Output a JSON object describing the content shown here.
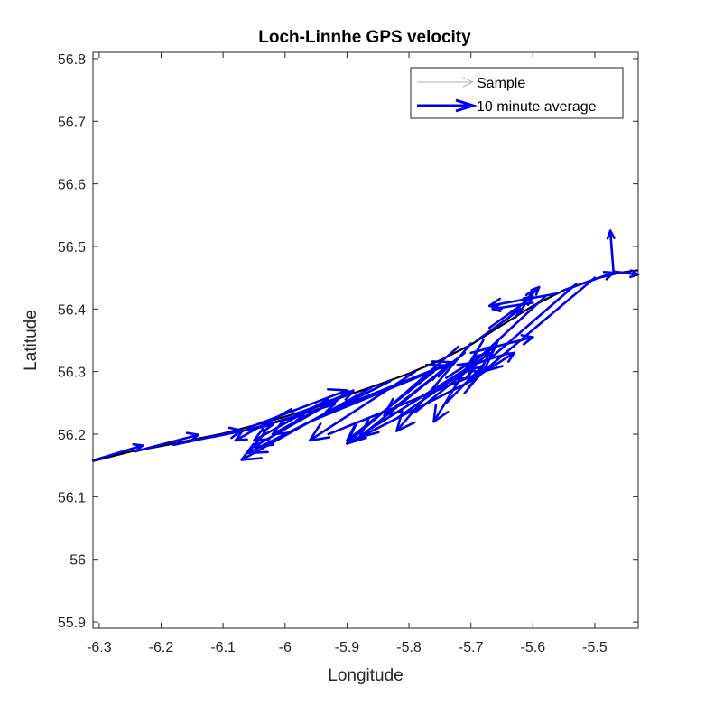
{
  "colors": {
    "avg": "#0000ee",
    "sample": "#000000",
    "sample_legend": "#b3b3b3",
    "axis": "#262626"
  },
  "chart_data": {
    "type": "quiver",
    "title": "Loch-Linnhe GPS velocity",
    "xlabel": "Longitude",
    "ylabel": "Latitude",
    "xlim": [
      -6.31,
      -5.43
    ],
    "ylim": [
      55.89,
      56.81
    ],
    "xticks": [
      -6.3,
      -6.2,
      -6.1,
      -6.0,
      -5.9,
      -5.8,
      -5.7,
      -5.6,
      -5.5
    ],
    "xtick_labels": [
      "-6.3",
      "-6.2",
      "-6.1",
      "-6",
      "-5.9",
      "-5.8",
      "-5.7",
      "-5.6",
      "-5.5"
    ],
    "yticks": [
      55.9,
      56.0,
      56.1,
      56.2,
      56.3,
      56.4,
      56.5,
      56.6,
      56.7,
      56.8
    ],
    "ytick_labels": [
      "55.9",
      "56",
      "56.1",
      "56.2",
      "56.3",
      "56.4",
      "56.5",
      "56.6",
      "56.7",
      "56.8"
    ],
    "grid": false,
    "legend_position": "top-right",
    "legend": [
      "Sample",
      "10 minute average"
    ],
    "sample_track": [
      [
        -6.31,
        56.157
      ],
      [
        -6.25,
        56.172
      ],
      [
        -6.2,
        56.181
      ],
      [
        -6.15,
        56.191
      ],
      [
        -6.1,
        56.201
      ],
      [
        -6.05,
        56.214
      ],
      [
        -6.0,
        56.228
      ],
      [
        -5.95,
        56.243
      ],
      [
        -5.9,
        56.262
      ],
      [
        -5.85,
        56.279
      ],
      [
        -5.8,
        56.297
      ],
      [
        -5.75,
        56.318
      ],
      [
        -5.7,
        56.343
      ],
      [
        -5.65,
        56.374
      ],
      [
        -5.6,
        56.405
      ],
      [
        -5.55,
        56.43
      ],
      [
        -5.5,
        56.448
      ],
      [
        -5.46,
        56.458
      ],
      [
        -5.43,
        56.462
      ]
    ],
    "series": [
      {
        "name": "10 minute average",
        "vectors": [
          {
            "x": -6.31,
            "y": 56.158,
            "u": 0.08,
            "v": 0.024
          },
          {
            "x": -6.24,
            "y": 56.173,
            "u": 0.1,
            "v": 0.026
          },
          {
            "x": -6.18,
            "y": 56.183,
            "u": 0.11,
            "v": 0.023
          },
          {
            "x": -6.12,
            "y": 56.195,
            "u": 0.1,
            "v": 0.02
          },
          {
            "x": -6.06,
            "y": 56.207,
            "u": 0.09,
            "v": 0.024
          },
          {
            "x": -6.02,
            "y": 56.218,
            "u": 0.1,
            "v": 0.03
          },
          {
            "x": -5.98,
            "y": 56.233,
            "u": 0.09,
            "v": 0.035
          },
          {
            "x": -6.06,
            "y": 56.21,
            "u": 0.16,
            "v": 0.06
          },
          {
            "x": -5.99,
            "y": 56.24,
            "u": -0.09,
            "v": -0.05
          },
          {
            "x": -5.93,
            "y": 56.256,
            "u": -0.12,
            "v": -0.066
          },
          {
            "x": -5.9,
            "y": 56.265,
            "u": -0.15,
            "v": -0.085
          },
          {
            "x": -5.86,
            "y": 56.275,
            "u": -0.21,
            "v": -0.116
          },
          {
            "x": -5.83,
            "y": 56.285,
            "u": -0.23,
            "v": -0.115
          },
          {
            "x": -5.89,
            "y": 56.27,
            "u": -0.13,
            "v": -0.07
          },
          {
            "x": -5.79,
            "y": 56.3,
            "u": -0.17,
            "v": -0.11
          },
          {
            "x": -5.92,
            "y": 56.24,
            "u": 0.19,
            "v": 0.075
          },
          {
            "x": -5.96,
            "y": 56.22,
            "u": 0.22,
            "v": 0.09
          },
          {
            "x": -5.93,
            "y": 56.2,
            "u": 0.25,
            "v": 0.1
          },
          {
            "x": -5.89,
            "y": 56.19,
            "u": 0.2,
            "v": 0.1
          },
          {
            "x": -5.86,
            "y": 56.21,
            "u": 0.17,
            "v": 0.105
          },
          {
            "x": -5.82,
            "y": 56.225,
            "u": 0.13,
            "v": 0.09
          },
          {
            "x": -5.79,
            "y": 56.235,
            "u": 0.12,
            "v": 0.095
          },
          {
            "x": -5.76,
            "y": 56.3,
            "u": -0.14,
            "v": -0.11
          },
          {
            "x": -5.73,
            "y": 56.315,
            "u": -0.15,
            "v": -0.12
          },
          {
            "x": -5.71,
            "y": 56.33,
            "u": -0.13,
            "v": -0.1
          },
          {
            "x": -5.72,
            "y": 56.34,
            "u": -0.18,
            "v": -0.155
          },
          {
            "x": -5.7,
            "y": 56.345,
            "u": -0.12,
            "v": -0.14
          },
          {
            "x": -5.68,
            "y": 56.35,
            "u": -0.08,
            "v": -0.13
          },
          {
            "x": -5.74,
            "y": 56.29,
            "u": 0.08,
            "v": 0.05
          },
          {
            "x": -5.71,
            "y": 56.28,
            "u": 0.08,
            "v": 0.05
          },
          {
            "x": -5.74,
            "y": 56.25,
            "u": 0.06,
            "v": 0.06
          },
          {
            "x": -5.69,
            "y": 56.35,
            "u": 0.07,
            "v": 0.05
          },
          {
            "x": -5.67,
            "y": 56.37,
            "u": 0.07,
            "v": 0.05
          },
          {
            "x": -5.7,
            "y": 56.33,
            "u": 0.1,
            "v": 0.025
          },
          {
            "x": -5.64,
            "y": 56.385,
            "u": 0.05,
            "v": 0.05
          },
          {
            "x": -5.62,
            "y": 56.395,
            "u": 0.02,
            "v": 0.035
          },
          {
            "x": -5.6,
            "y": 56.41,
            "u": -0.065,
            "v": -0.01
          },
          {
            "x": -5.58,
            "y": 56.42,
            "u": -0.12,
            "v": -0.11
          },
          {
            "x": -5.53,
            "y": 56.44,
            "u": -0.14,
            "v": -0.12
          },
          {
            "x": -5.5,
            "y": 56.45,
            "u": -0.18,
            "v": -0.15
          },
          {
            "x": -5.55,
            "y": 56.43,
            "u": 0.08,
            "v": 0.028
          },
          {
            "x": -5.56,
            "y": 56.425,
            "u": -0.11,
            "v": -0.02
          },
          {
            "x": -5.47,
            "y": 56.46,
            "u": -0.005,
            "v": 0.065
          },
          {
            "x": -5.47,
            "y": 56.46,
            "u": 0.04,
            "v": -0.005
          }
        ]
      }
    ]
  }
}
